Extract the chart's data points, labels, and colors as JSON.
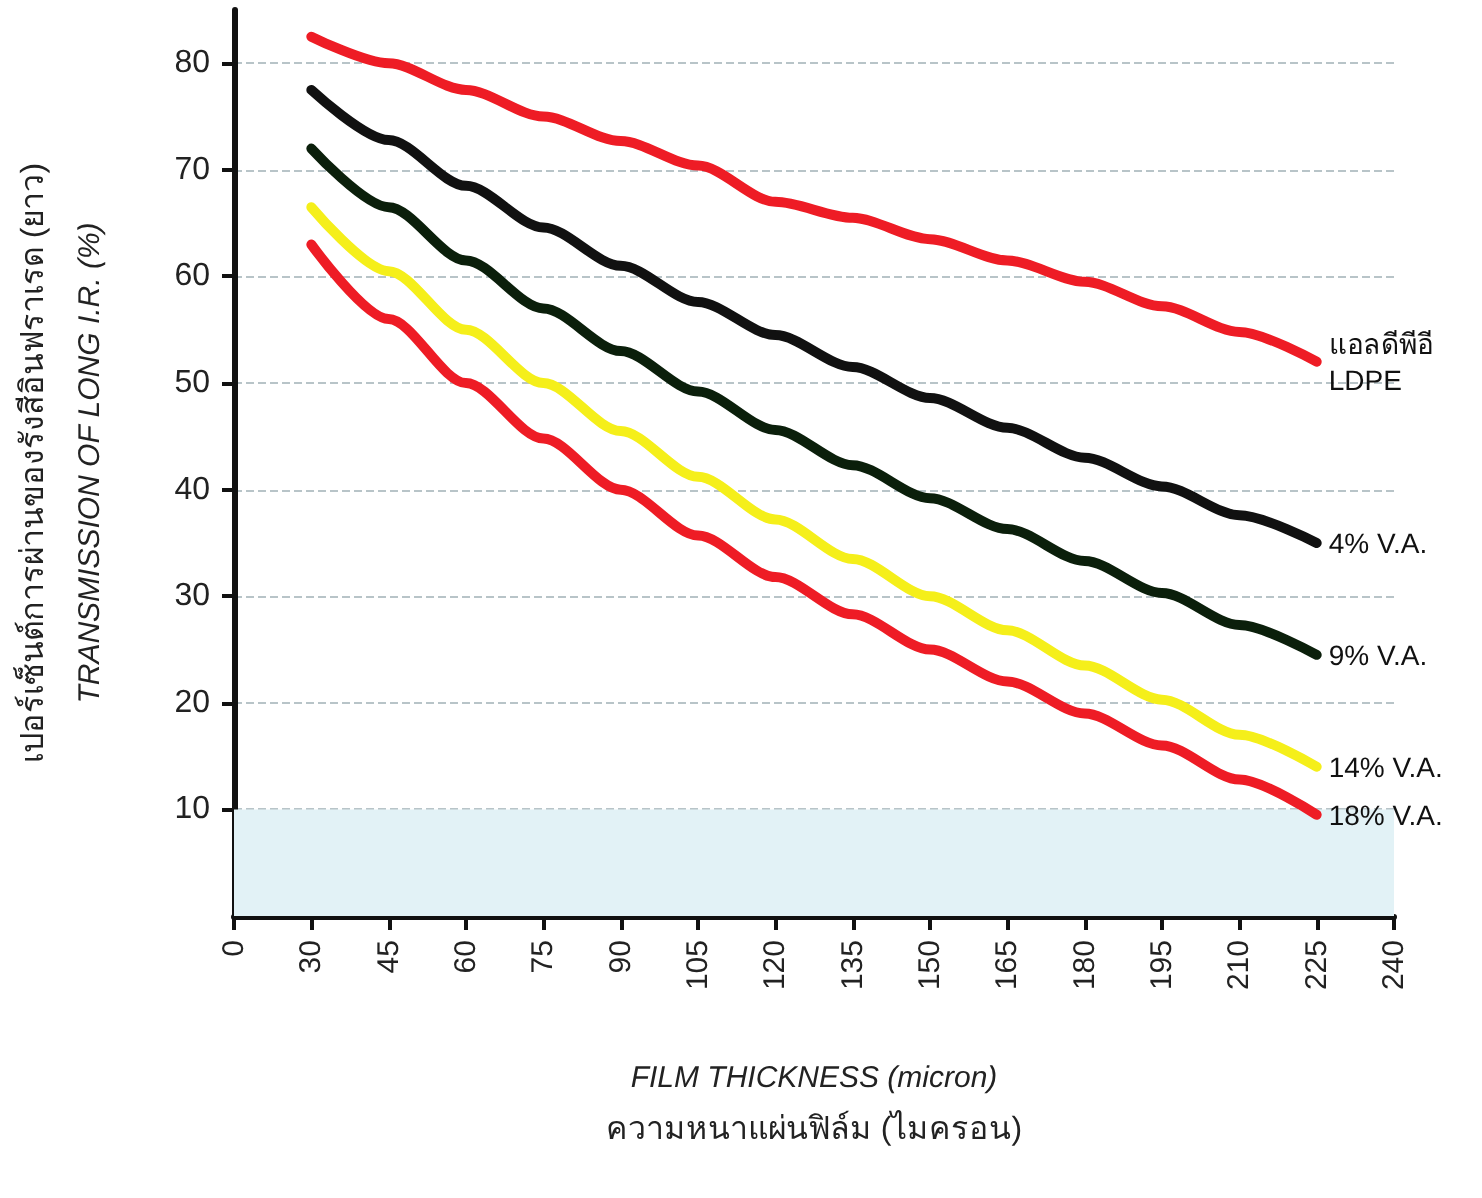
{
  "chart_data": {
    "type": "line",
    "xlabel": "FILM THICKNESS (micron)\nความหนาแผ่นฟิล์ม (ไมครอน)",
    "ylabel": "เปอร์เซ็นต์การผ่านของรังสีอินฟราเรด (ยาว)\nTRANSMISSION OF LONG I.R. (%)",
    "categories": [
      "0",
      "30",
      "45",
      "60",
      "75",
      "90",
      "105",
      "120",
      "135",
      "150",
      "165",
      "180",
      "195",
      "210",
      "225",
      "240"
    ],
    "series": [
      {
        "name": "แอลดีพีอี\nLDPE",
        "color": "#ee1c25",
        "values": [
          null,
          82.5,
          80,
          77.5,
          75,
          72.7,
          70.4,
          67,
          65.5,
          63.5,
          61.5,
          59.5,
          57.2,
          54.8,
          52,
          null
        ]
      },
      {
        "name": "4% V.A.",
        "color": "#111111",
        "values": [
          null,
          77.5,
          72.8,
          68.5,
          64.6,
          61,
          57.6,
          54.5,
          51.5,
          48.6,
          45.8,
          43,
          40.3,
          37.6,
          35,
          null
        ]
      },
      {
        "name": "9% V.A.",
        "color": "#0b1f0b",
        "values": [
          null,
          72,
          66.5,
          61.5,
          57,
          53,
          49.2,
          45.6,
          42.3,
          39.2,
          36.3,
          33.3,
          30.3,
          27.3,
          24.5,
          null
        ]
      },
      {
        "name": "14% V.A.",
        "color": "#f5ef1a",
        "values": [
          null,
          66.5,
          60.5,
          55,
          50,
          45.5,
          41.2,
          37.2,
          33.5,
          30,
          26.8,
          23.5,
          20.3,
          17,
          14,
          null
        ]
      },
      {
        "name": "18% V.A.",
        "color": "#ee1c25",
        "values": [
          null,
          63,
          56,
          50,
          44.8,
          40,
          35.7,
          31.8,
          28.3,
          25,
          22,
          19,
          16,
          12.8,
          9.5,
          null
        ]
      }
    ],
    "ylim": [
      0,
      85
    ],
    "yticks": [
      10,
      20,
      30,
      40,
      50,
      60,
      70,
      80
    ],
    "grid": "y",
    "marker": "none",
    "line_style": "solid",
    "bands": [
      {
        "axis": "y",
        "from": 0,
        "to": 10,
        "color": "#e2f2f6"
      }
    ]
  }
}
